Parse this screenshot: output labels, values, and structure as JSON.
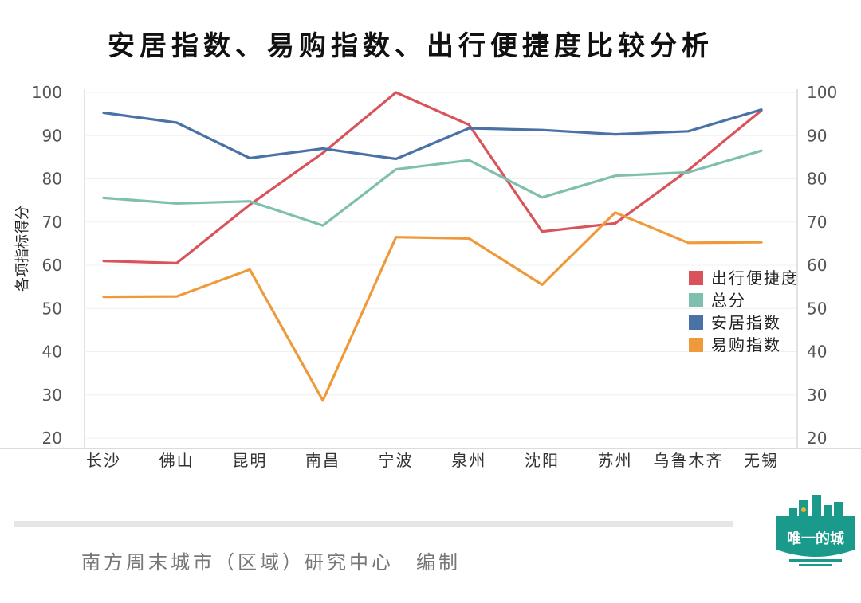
{
  "title": "安居指数、易购指数、出行便捷度比较分析",
  "footer": "南方周末城市（区域）研究中心　编制",
  "logo_text": "唯一的城",
  "chart_data": {
    "type": "line",
    "title": "安居指数、易购指数、出行便捷度比较分析",
    "ylabel": "各项指标得分",
    "xlabel": "",
    "ylim": [
      20,
      100
    ],
    "y_ticks": [
      20,
      30,
      40,
      50,
      60,
      70,
      80,
      90,
      100
    ],
    "grid": true,
    "legend_position": "right",
    "categories": [
      "长沙",
      "佛山",
      "昆明",
      "南昌",
      "宁波",
      "泉州",
      "沈阳",
      "苏州",
      "乌鲁木齐",
      "无锡"
    ],
    "series": [
      {
        "name": "出行便捷度",
        "color": "#d9545a",
        "values": [
          61,
          60.5,
          74,
          86,
          100,
          92.5,
          67.8,
          69.7,
          82,
          95.8
        ]
      },
      {
        "name": "总分",
        "color": "#7fbfae",
        "values": [
          75.6,
          74.3,
          74.8,
          69.2,
          82.2,
          84.3,
          75.7,
          80.7,
          81.5,
          86.5
        ]
      },
      {
        "name": "安居指数",
        "color": "#4a72a6",
        "values": [
          95.3,
          93,
          84.8,
          87,
          84.6,
          91.7,
          91.3,
          90.3,
          91,
          96
        ]
      },
      {
        "name": "易购指数",
        "color": "#ef9a3a",
        "values": [
          52.7,
          52.8,
          59,
          28.7,
          66.5,
          66.2,
          55.5,
          72.2,
          65.2,
          65.3
        ]
      }
    ]
  }
}
